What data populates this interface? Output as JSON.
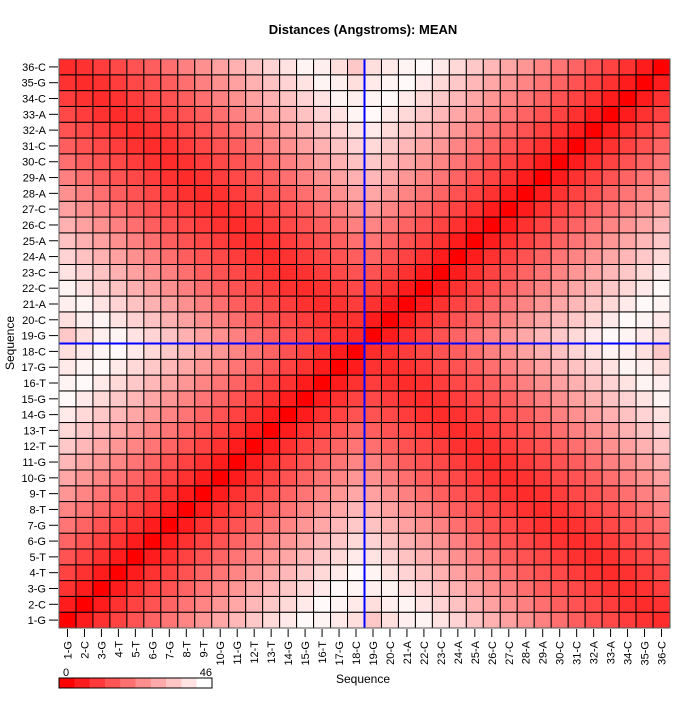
{
  "chart_data": {
    "type": "heatmap",
    "title": "Distances (Angstroms):  MEAN",
    "xlabel": "Sequence",
    "ylabel": "Sequence",
    "labels": [
      "1-G",
      "2-C",
      "3-G",
      "4-T",
      "5-T",
      "6-G",
      "7-G",
      "8-T",
      "9-T",
      "10-G",
      "11-G",
      "12-T",
      "13-T",
      "14-G",
      "15-G",
      "16-T",
      "17-G",
      "18-C",
      "19-G",
      "20-C",
      "21-A",
      "22-C",
      "23-C",
      "24-A",
      "25-A",
      "26-C",
      "27-C",
      "28-A",
      "29-A",
      "30-C",
      "31-C",
      "32-A",
      "33-A",
      "34-C",
      "35-G",
      "36-C"
    ],
    "divider_after_label": "18-C",
    "divider_color": "#0000ff",
    "colorscale": {
      "min": 0,
      "max": 46,
      "min_label": "0",
      "max_label": "46",
      "low_color": "#ff0000",
      "high_color": "#ffffff",
      "bins": 10
    },
    "grid": true,
    "z": [
      [
        0,
        5,
        9,
        12,
        15,
        18,
        21,
        24,
        27,
        30,
        33,
        36,
        39,
        42,
        45,
        44,
        42,
        40,
        36,
        40,
        43,
        44,
        41,
        38,
        35,
        32,
        29,
        26,
        23,
        20,
        17,
        15,
        13,
        11,
        9,
        8
      ],
      [
        5,
        0,
        5,
        9,
        12,
        15,
        18,
        21,
        24,
        27,
        30,
        33,
        36,
        39,
        42,
        45,
        44,
        42,
        40,
        43,
        44,
        41,
        38,
        35,
        32,
        29,
        26,
        23,
        20,
        17,
        15,
        13,
        11,
        9,
        8,
        9
      ],
      [
        9,
        5,
        0,
        5,
        9,
        12,
        15,
        18,
        21,
        24,
        27,
        30,
        33,
        36,
        39,
        42,
        45,
        44,
        43,
        44,
        41,
        38,
        35,
        32,
        29,
        26,
        23,
        20,
        17,
        15,
        13,
        11,
        9,
        8,
        9,
        11
      ],
      [
        12,
        9,
        5,
        0,
        5,
        9,
        12,
        15,
        18,
        21,
        24,
        27,
        30,
        33,
        36,
        39,
        42,
        45,
        44,
        41,
        38,
        35,
        32,
        29,
        26,
        23,
        20,
        17,
        15,
        13,
        11,
        9,
        8,
        9,
        11,
        13
      ],
      [
        15,
        12,
        9,
        5,
        0,
        5,
        9,
        12,
        15,
        18,
        21,
        24,
        27,
        30,
        33,
        36,
        39,
        42,
        41,
        38,
        35,
        32,
        29,
        26,
        23,
        20,
        17,
        15,
        13,
        11,
        9,
        8,
        9,
        11,
        13,
        15
      ],
      [
        18,
        15,
        12,
        9,
        5,
        0,
        5,
        9,
        12,
        15,
        18,
        21,
        24,
        27,
        30,
        33,
        36,
        39,
        38,
        35,
        32,
        29,
        26,
        23,
        20,
        17,
        15,
        13,
        11,
        9,
        8,
        9,
        11,
        13,
        15,
        17
      ],
      [
        21,
        18,
        15,
        12,
        9,
        5,
        0,
        5,
        9,
        12,
        15,
        18,
        21,
        24,
        27,
        30,
        33,
        36,
        35,
        32,
        29,
        26,
        23,
        20,
        17,
        15,
        13,
        11,
        9,
        8,
        9,
        11,
        13,
        15,
        17,
        20
      ],
      [
        24,
        21,
        18,
        15,
        12,
        9,
        5,
        0,
        5,
        9,
        12,
        15,
        18,
        21,
        24,
        27,
        30,
        33,
        32,
        29,
        26,
        23,
        20,
        17,
        15,
        13,
        11,
        9,
        8,
        9,
        11,
        13,
        15,
        17,
        20,
        23
      ],
      [
        27,
        24,
        21,
        18,
        15,
        12,
        9,
        5,
        0,
        5,
        9,
        12,
        15,
        18,
        21,
        24,
        27,
        30,
        29,
        26,
        23,
        20,
        17,
        15,
        13,
        11,
        9,
        8,
        9,
        11,
        13,
        15,
        17,
        20,
        23,
        26
      ],
      [
        30,
        27,
        24,
        21,
        18,
        15,
        12,
        9,
        5,
        0,
        5,
        9,
        12,
        15,
        18,
        21,
        24,
        27,
        26,
        23,
        20,
        17,
        15,
        13,
        11,
        9,
        8,
        9,
        11,
        13,
        15,
        17,
        20,
        23,
        26,
        29
      ],
      [
        33,
        30,
        27,
        24,
        21,
        18,
        15,
        12,
        9,
        5,
        0,
        5,
        9,
        12,
        15,
        18,
        21,
        24,
        23,
        20,
        17,
        15,
        13,
        11,
        9,
        8,
        9,
        11,
        13,
        15,
        17,
        20,
        23,
        26,
        29,
        32
      ],
      [
        36,
        33,
        30,
        27,
        24,
        21,
        18,
        15,
        12,
        9,
        5,
        0,
        5,
        9,
        12,
        15,
        18,
        21,
        20,
        17,
        15,
        13,
        11,
        9,
        8,
        9,
        11,
        13,
        15,
        17,
        20,
        23,
        26,
        29,
        32,
        35
      ],
      [
        39,
        36,
        33,
        30,
        27,
        24,
        21,
        18,
        15,
        12,
        9,
        5,
        0,
        5,
        9,
        12,
        15,
        18,
        17,
        15,
        13,
        11,
        9,
        8,
        9,
        11,
        13,
        15,
        17,
        20,
        23,
        26,
        29,
        32,
        35,
        38
      ],
      [
        42,
        39,
        36,
        33,
        30,
        27,
        24,
        21,
        18,
        15,
        12,
        9,
        5,
        0,
        5,
        9,
        12,
        15,
        15,
        13,
        11,
        9,
        8,
        9,
        11,
        13,
        15,
        17,
        20,
        23,
        26,
        29,
        32,
        35,
        38,
        41
      ],
      [
        45,
        42,
        39,
        36,
        33,
        30,
        27,
        24,
        21,
        18,
        15,
        12,
        9,
        5,
        0,
        5,
        9,
        12,
        13,
        11,
        9,
        8,
        9,
        11,
        13,
        15,
        17,
        20,
        23,
        26,
        29,
        32,
        35,
        38,
        41,
        44
      ],
      [
        44,
        45,
        42,
        39,
        36,
        33,
        30,
        27,
        24,
        21,
        18,
        15,
        12,
        9,
        5,
        0,
        5,
        9,
        11,
        9,
        8,
        9,
        11,
        13,
        15,
        17,
        20,
        23,
        26,
        29,
        32,
        35,
        38,
        41,
        44,
        43
      ],
      [
        42,
        44,
        45,
        42,
        39,
        36,
        33,
        30,
        27,
        24,
        21,
        18,
        15,
        12,
        9,
        5,
        0,
        5,
        9,
        8,
        9,
        11,
        13,
        15,
        17,
        20,
        23,
        26,
        29,
        32,
        35,
        38,
        41,
        44,
        43,
        40
      ],
      [
        40,
        42,
        44,
        45,
        42,
        39,
        36,
        33,
        30,
        27,
        24,
        21,
        18,
        15,
        12,
        9,
        5,
        0,
        8,
        9,
        11,
        13,
        15,
        17,
        20,
        23,
        26,
        29,
        32,
        35,
        38,
        41,
        44,
        43,
        40,
        36
      ],
      [
        36,
        40,
        43,
        44,
        41,
        38,
        35,
        32,
        29,
        26,
        23,
        20,
        17,
        15,
        13,
        11,
        9,
        8,
        0,
        5,
        9,
        12,
        15,
        18,
        21,
        24,
        27,
        30,
        33,
        36,
        39,
        42,
        45,
        44,
        42,
        40
      ],
      [
        40,
        43,
        44,
        41,
        38,
        35,
        32,
        29,
        26,
        23,
        20,
        17,
        15,
        13,
        11,
        9,
        8,
        9,
        5,
        0,
        5,
        9,
        12,
        15,
        18,
        21,
        24,
        27,
        30,
        33,
        36,
        39,
        42,
        45,
        44,
        42
      ],
      [
        43,
        44,
        41,
        38,
        35,
        32,
        29,
        26,
        23,
        20,
        17,
        15,
        13,
        11,
        9,
        8,
        9,
        11,
        9,
        5,
        0,
        5,
        9,
        12,
        15,
        18,
        21,
        24,
        27,
        30,
        33,
        36,
        39,
        42,
        45,
        44
      ],
      [
        44,
        41,
        38,
        35,
        32,
        29,
        26,
        23,
        20,
        17,
        15,
        13,
        11,
        9,
        8,
        9,
        11,
        13,
        12,
        9,
        5,
        0,
        5,
        9,
        12,
        15,
        18,
        21,
        24,
        27,
        30,
        33,
        36,
        39,
        42,
        45
      ],
      [
        41,
        38,
        35,
        32,
        29,
        26,
        23,
        20,
        17,
        15,
        13,
        11,
        9,
        8,
        9,
        11,
        13,
        15,
        15,
        12,
        9,
        5,
        0,
        5,
        9,
        12,
        15,
        18,
        21,
        24,
        27,
        30,
        33,
        36,
        39,
        42
      ],
      [
        38,
        35,
        32,
        29,
        26,
        23,
        20,
        17,
        15,
        13,
        11,
        9,
        8,
        9,
        11,
        13,
        15,
        17,
        18,
        15,
        12,
        9,
        5,
        0,
        5,
        9,
        12,
        15,
        18,
        21,
        24,
        27,
        30,
        33,
        36,
        39
      ],
      [
        35,
        32,
        29,
        26,
        23,
        20,
        17,
        15,
        13,
        11,
        9,
        8,
        9,
        11,
        13,
        15,
        17,
        20,
        21,
        18,
        15,
        12,
        9,
        5,
        0,
        5,
        9,
        12,
        15,
        18,
        21,
        24,
        27,
        30,
        33,
        36
      ],
      [
        32,
        29,
        26,
        23,
        20,
        17,
        15,
        13,
        11,
        9,
        8,
        9,
        11,
        13,
        15,
        17,
        20,
        23,
        24,
        21,
        18,
        15,
        12,
        9,
        5,
        0,
        5,
        9,
        12,
        15,
        18,
        21,
        24,
        27,
        30,
        33
      ],
      [
        29,
        26,
        23,
        20,
        17,
        15,
        13,
        11,
        9,
        8,
        9,
        11,
        13,
        15,
        17,
        20,
        23,
        26,
        27,
        24,
        21,
        18,
        15,
        12,
        9,
        5,
        0,
        5,
        9,
        12,
        15,
        18,
        21,
        24,
        27,
        30
      ],
      [
        26,
        23,
        20,
        17,
        15,
        13,
        11,
        9,
        8,
        9,
        11,
        13,
        15,
        17,
        20,
        23,
        26,
        29,
        30,
        27,
        24,
        21,
        18,
        15,
        12,
        9,
        5,
        0,
        5,
        9,
        12,
        15,
        18,
        21,
        24,
        27
      ],
      [
        23,
        20,
        17,
        15,
        13,
        11,
        9,
        8,
        9,
        11,
        13,
        15,
        17,
        20,
        23,
        26,
        29,
        32,
        33,
        30,
        27,
        24,
        21,
        18,
        15,
        12,
        9,
        5,
        0,
        5,
        9,
        12,
        15,
        18,
        21,
        24
      ],
      [
        20,
        17,
        15,
        13,
        11,
        9,
        8,
        9,
        11,
        13,
        15,
        17,
        20,
        23,
        26,
        29,
        32,
        35,
        36,
        33,
        30,
        27,
        24,
        21,
        18,
        15,
        12,
        9,
        5,
        0,
        5,
        9,
        12,
        15,
        18,
        21
      ],
      [
        17,
        15,
        13,
        11,
        9,
        8,
        9,
        11,
        13,
        15,
        17,
        20,
        23,
        26,
        29,
        32,
        35,
        38,
        39,
        36,
        33,
        30,
        27,
        24,
        21,
        18,
        15,
        12,
        9,
        5,
        0,
        5,
        9,
        12,
        15,
        18
      ],
      [
        15,
        13,
        11,
        9,
        8,
        9,
        11,
        13,
        15,
        17,
        20,
        23,
        26,
        29,
        32,
        35,
        38,
        41,
        42,
        39,
        36,
        33,
        30,
        27,
        24,
        21,
        18,
        15,
        12,
        9,
        5,
        0,
        5,
        9,
        12,
        15
      ],
      [
        13,
        11,
        9,
        8,
        9,
        11,
        13,
        15,
        17,
        20,
        23,
        26,
        29,
        32,
        35,
        38,
        41,
        44,
        45,
        42,
        39,
        36,
        33,
        30,
        27,
        24,
        21,
        18,
        15,
        12,
        9,
        5,
        0,
        5,
        9,
        12
      ],
      [
        11,
        9,
        8,
        9,
        11,
        13,
        15,
        17,
        20,
        23,
        26,
        29,
        32,
        35,
        38,
        41,
        44,
        43,
        44,
        45,
        42,
        39,
        36,
        33,
        30,
        27,
        24,
        21,
        18,
        15,
        12,
        9,
        5,
        0,
        5,
        9
      ],
      [
        9,
        8,
        9,
        11,
        13,
        15,
        17,
        20,
        23,
        26,
        29,
        32,
        35,
        38,
        41,
        44,
        43,
        40,
        42,
        44,
        45,
        42,
        39,
        36,
        33,
        30,
        27,
        24,
        21,
        18,
        15,
        12,
        9,
        5,
        0,
        5
      ],
      [
        8,
        9,
        11,
        13,
        15,
        17,
        20,
        23,
        26,
        29,
        32,
        35,
        38,
        41,
        44,
        43,
        40,
        36,
        40,
        42,
        44,
        45,
        42,
        39,
        36,
        33,
        30,
        27,
        24,
        21,
        18,
        15,
        12,
        9,
        5,
        0
      ]
    ]
  }
}
